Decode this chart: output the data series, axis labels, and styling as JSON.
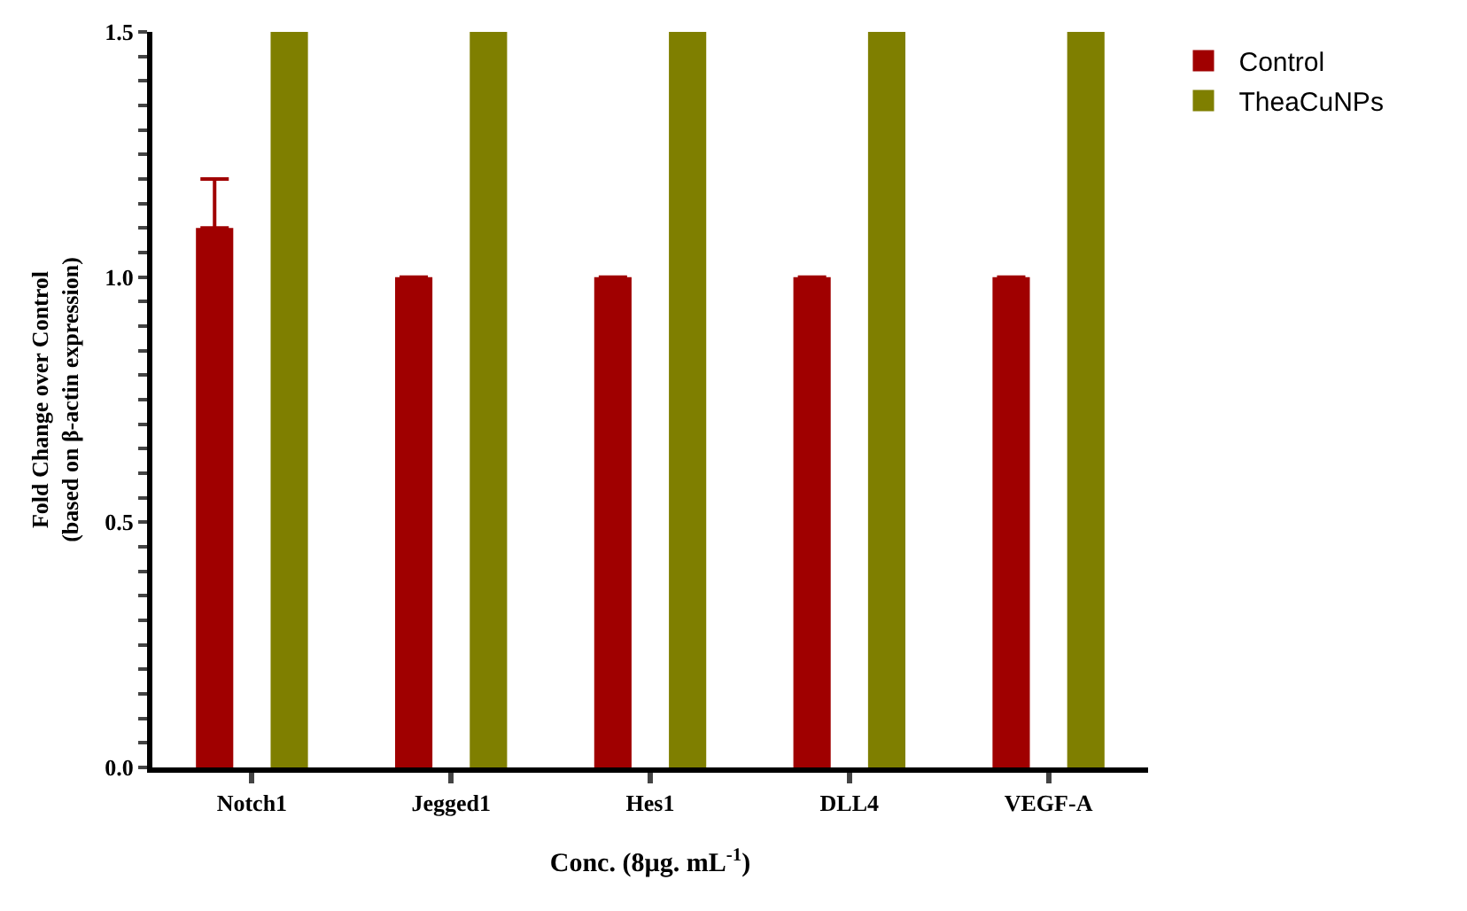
{
  "chart_data": {
    "type": "bar",
    "xlabel": "Conc. (8µg. mL$^{-1}$)",
    "ylabel": "Fold Change over Control\n(based on β-actin expression)",
    "categories": [
      "Notch1",
      "Jegged1",
      "Hes1",
      "DLL4",
      "VEGF-A"
    ],
    "series": [
      {
        "name": "Control",
        "color": "#a00000",
        "values": [
          1.1,
          1.0,
          1.0,
          1.0,
          1.0
        ],
        "errors": [
          [
            1.1,
            1.2
          ],
          null,
          null,
          null,
          null
        ]
      },
      {
        "name": "TheaCuNPs",
        "color": "#7f7f00",
        "values": [
          1.5,
          1.5,
          1.5,
          1.5,
          1.5
        ]
      }
    ],
    "ylim": [
      0,
      1.5
    ],
    "yticks": [
      {
        "value": 0,
        "label": "0.0"
      },
      {
        "value": 0.05,
        "label": null
      },
      {
        "value": 0.1,
        "label": null
      },
      {
        "value": 0.15,
        "label": null
      },
      {
        "value": 0.2,
        "label": null
      },
      {
        "value": 0.25,
        "label": null
      },
      {
        "value": 0.3,
        "label": null
      },
      {
        "value": 0.35,
        "label": null
      },
      {
        "value": 0.4,
        "label": null
      },
      {
        "value": 0.45,
        "label": null
      },
      {
        "value": 0.5,
        "label": "0.5"
      },
      {
        "value": 0.55,
        "label": null
      },
      {
        "value": 0.6,
        "label": null
      },
      {
        "value": 0.65,
        "label": null
      },
      {
        "value": 0.7,
        "label": null
      },
      {
        "value": 0.75,
        "label": null
      },
      {
        "value": 0.8,
        "label": null
      },
      {
        "value": 0.85,
        "label": null
      },
      {
        "value": 0.9,
        "label": null
      },
      {
        "value": 0.95,
        "label": null
      },
      {
        "value": 1.0,
        "label": "1.0"
      },
      {
        "value": 1.05,
        "label": null
      },
      {
        "value": 1.1,
        "label": null
      },
      {
        "value": 1.15,
        "label": null
      },
      {
        "value": 1.2,
        "label": null
      },
      {
        "value": 1.25,
        "label": null
      },
      {
        "value": 1.3,
        "label": null
      },
      {
        "value": 1.35,
        "label": null
      },
      {
        "value": 1.4,
        "label": null
      },
      {
        "value": 1.45,
        "label": null
      },
      {
        "value": 1.5,
        "label": "1.5"
      }
    ],
    "grid": false,
    "legend": "top right"
  }
}
